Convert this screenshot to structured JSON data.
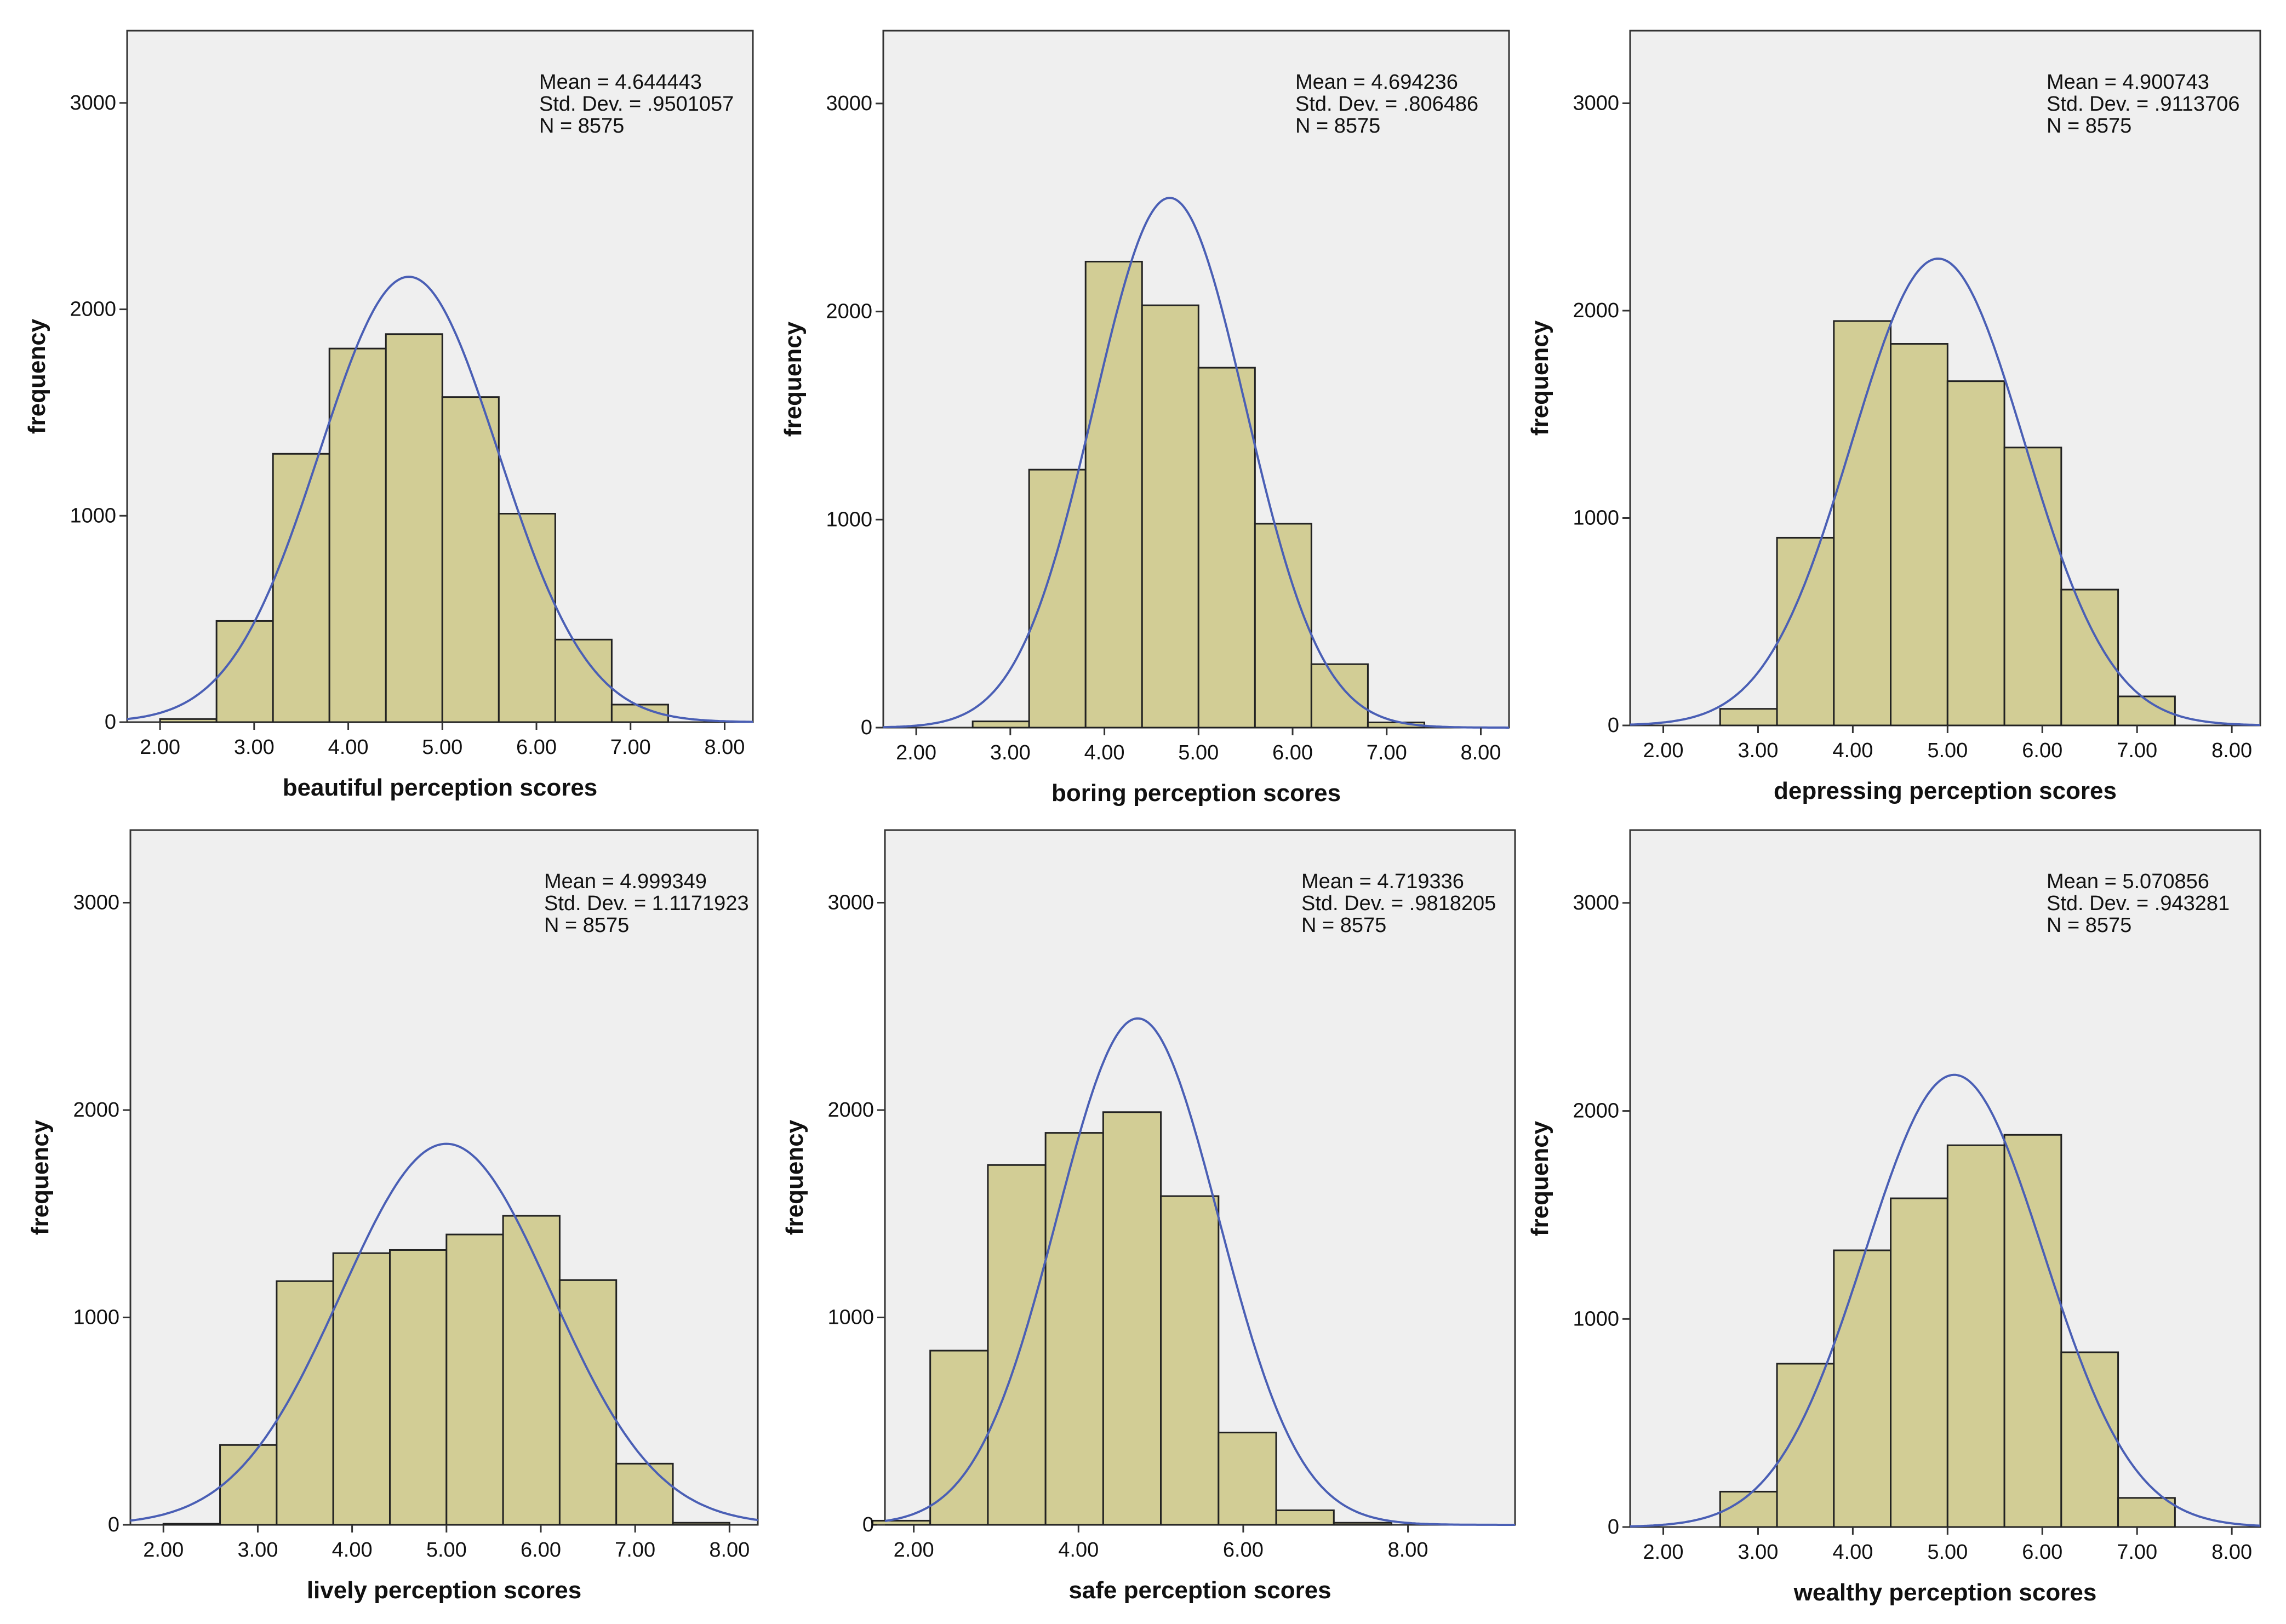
{
  "colors": {
    "panel_bg": "#efefef",
    "bar_fill": "#d2cd95",
    "bar_stroke": "#222222",
    "curve": "#4a5fb5",
    "text": "#111111"
  },
  "chart_data": [
    {
      "type": "bar",
      "title": "",
      "xlabel": "beautiful perception scores",
      "ylabel": "frequency",
      "xlim": [
        1.65,
        8.3
      ],
      "ylim": [
        0,
        3350
      ],
      "xticks": [
        "2.00",
        "3.00",
        "4.00",
        "5.00",
        "6.00",
        "7.00",
        "8.00"
      ],
      "yticks": [
        "0",
        "1000",
        "2000",
        "3000"
      ],
      "bin_width": 0.6,
      "bin_start": 2.0,
      "values": [
        15,
        490,
        1300,
        1810,
        1880,
        1575,
        1010,
        400,
        85
      ],
      "stats": {
        "mean": "Mean = 4.644443",
        "std": "Std. Dev. = .9501057",
        "n": "N = 8575"
      },
      "normal_curve": {
        "mean": 4.644443,
        "sd": 0.9501057
      }
    },
    {
      "type": "bar",
      "title": "",
      "xlabel": "boring perception scores",
      "ylabel": "frequency",
      "xlim": [
        1.65,
        8.3
      ],
      "ylim": [
        0,
        3350
      ],
      "xticks": [
        "2.00",
        "3.00",
        "4.00",
        "5.00",
        "6.00",
        "7.00",
        "8.00"
      ],
      "yticks": [
        "0",
        "1000",
        "2000",
        "3000"
      ],
      "bin_width": 0.6,
      "bin_start": 2.6,
      "values": [
        30,
        1240,
        2240,
        2030,
        1730,
        980,
        305,
        25
      ],
      "stats": {
        "mean": "Mean = 4.694236",
        "std": "Std. Dev. = .806486",
        "n": "N = 8575"
      },
      "normal_curve": {
        "mean": 4.694236,
        "sd": 0.806486
      }
    },
    {
      "type": "bar",
      "title": "",
      "xlabel": "depressing perception scores",
      "ylabel": "frequency",
      "xlim": [
        1.65,
        8.3
      ],
      "ylim": [
        0,
        3350
      ],
      "xticks": [
        "2.00",
        "3.00",
        "4.00",
        "5.00",
        "6.00",
        "7.00",
        "8.00"
      ],
      "yticks": [
        "0",
        "1000",
        "2000",
        "3000"
      ],
      "bin_width": 0.6,
      "bin_start": 2.6,
      "values": [
        80,
        905,
        1950,
        1840,
        1660,
        1340,
        655,
        140
      ],
      "stats": {
        "mean": "Mean = 4.900743",
        "std": "Std. Dev. = .9113706",
        "n": "N = 8575"
      },
      "normal_curve": {
        "mean": 4.900743,
        "sd": 0.9113706
      }
    },
    {
      "type": "bar",
      "title": "",
      "xlabel": "lively perception scores",
      "ylabel": "frequency",
      "xlim": [
        1.65,
        8.3
      ],
      "ylim": [
        0,
        3350
      ],
      "xticks": [
        "2.00",
        "3.00",
        "4.00",
        "5.00",
        "6.00",
        "7.00",
        "8.00"
      ],
      "yticks": [
        "0",
        "1000",
        "2000",
        "3000"
      ],
      "bin_width": 0.6,
      "bin_start": 2.0,
      "values": [
        5,
        385,
        1175,
        1310,
        1325,
        1400,
        1490,
        1180,
        295,
        10
      ],
      "stats": {
        "mean": "Mean = 4.999349",
        "std": "Std. Dev. = 1.1171923",
        "n": "N = 8575"
      },
      "normal_curve": {
        "mean": 4.999349,
        "sd": 1.1171923
      }
    },
    {
      "type": "bar",
      "title": "",
      "xlabel": "safe perception scores",
      "ylabel": "frequency",
      "xlim": [
        1.65,
        9.3
      ],
      "ylim": [
        0,
        3350
      ],
      "xticks": [
        "2.00",
        "4.00",
        "6.00",
        "8.00"
      ],
      "yticks": [
        "0",
        "1000",
        "2000",
        "3000"
      ],
      "bin_width": 0.7,
      "bin_start": 1.5,
      "values": [
        20,
        840,
        1735,
        1890,
        1990,
        1585,
        445,
        70,
        10
      ],
      "stats": {
        "mean": "Mean = 4.719336",
        "std": "Std. Dev. = .9818205",
        "n": "N = 8575"
      },
      "normal_curve": {
        "mean": 4.719336,
        "sd": 0.9818205
      }
    },
    {
      "type": "bar",
      "title": "",
      "xlabel": "wealthy perception scores",
      "ylabel": "frequency",
      "xlim": [
        1.65,
        8.3
      ],
      "ylim": [
        0,
        3350
      ],
      "xticks": [
        "2.00",
        "3.00",
        "4.00",
        "5.00",
        "6.00",
        "7.00",
        "8.00"
      ],
      "yticks": [
        "0",
        "1000",
        "2000",
        "3000"
      ],
      "bin_width": 0.6,
      "bin_start": 2.6,
      "values": [
        170,
        785,
        1330,
        1580,
        1835,
        1885,
        840,
        140
      ],
      "stats": {
        "mean": "Mean = 5.070856",
        "std": "Std. Dev. = .943281",
        "n": "N = 8575"
      },
      "normal_curve": {
        "mean": 5.070856,
        "sd": 0.943281
      }
    }
  ]
}
